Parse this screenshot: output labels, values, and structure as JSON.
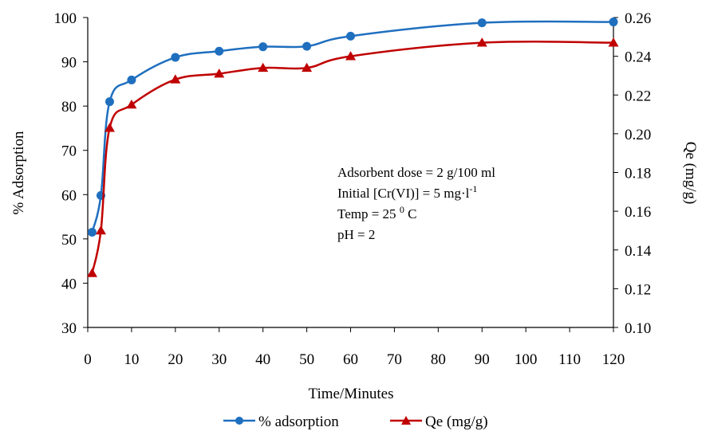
{
  "chart_data": {
    "type": "line",
    "xlabel": "Time/Minutes",
    "ylabel_left": "% Adsorption",
    "ylabel_right": "Qe (mg/g)",
    "x_ticks": [
      "0",
      "10",
      "20",
      "30",
      "40",
      "50",
      "60",
      "70",
      "80",
      "90",
      "100",
      "110",
      "120"
    ],
    "y_left_ticks": [
      "30",
      "40",
      "50",
      "60",
      "70",
      "80",
      "90",
      "100"
    ],
    "y_right_ticks": [
      "0.10",
      "0.12",
      "0.14",
      "0.16",
      "0.18",
      "0.20",
      "0.22",
      "0.24",
      "0.26"
    ],
    "xlim": [
      0,
      120
    ],
    "ylim_left": [
      30,
      100
    ],
    "ylim_right": [
      0.1,
      0.26
    ],
    "grid": false,
    "legend_position": "bottom",
    "series": [
      {
        "name": "% adsorption",
        "axis": "left",
        "color": "#1f6fbf",
        "marker": "circle",
        "x": [
          1,
          3,
          5,
          10,
          20,
          30,
          40,
          50,
          60,
          90,
          120
        ],
        "y": [
          51.5,
          59.8,
          81.0,
          85.9,
          91.0,
          92.4,
          93.4,
          93.5,
          95.8,
          98.8,
          99.0
        ]
      },
      {
        "name": "Qe (mg/g)",
        "axis": "right",
        "color": "#c00000",
        "marker": "triangle",
        "x": [
          1,
          3,
          5,
          10,
          20,
          30,
          40,
          50,
          60,
          90,
          120
        ],
        "y": [
          0.128,
          0.15,
          0.203,
          0.215,
          0.228,
          0.231,
          0.234,
          0.234,
          0.24,
          0.247,
          0.247
        ]
      }
    ],
    "annotations": {
      "line1": "Adsorbent dose = 2 g/100 ml",
      "line2_prefix": "Initial [Cr(VI)] = 5 mg·l",
      "line2_sup": "-1",
      "line3_prefix": "Temp = 25 ",
      "line3_sup": "0",
      "line3_suffix": " C",
      "line4": "pH = 2"
    }
  }
}
